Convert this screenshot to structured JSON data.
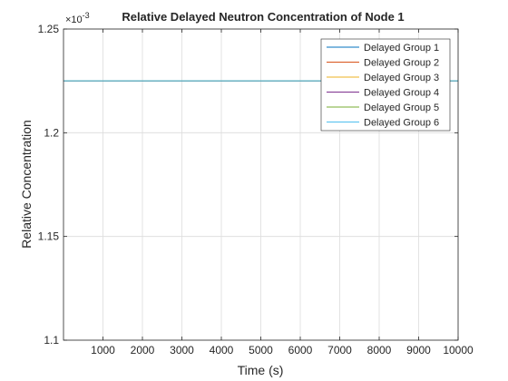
{
  "chart_data": {
    "type": "line",
    "title": "Relative Delayed Neutron Concentration of Node 1",
    "xlabel": "Time (s)",
    "ylabel": "Relative Concentration",
    "y_exponent_label": "×10",
    "y_exponent_value": "-3",
    "xlim": [
      0,
      10000
    ],
    "ylim": [
      0.0011,
      0.00125
    ],
    "x_ticks": [
      1000,
      2000,
      3000,
      4000,
      5000,
      6000,
      7000,
      8000,
      9000,
      10000
    ],
    "x_tick_labels": [
      "1000",
      "2000",
      "3000",
      "4000",
      "5000",
      "6000",
      "7000",
      "8000",
      "9000",
      "10000"
    ],
    "y_ticks": [
      0.0011,
      0.00115,
      0.0012,
      0.00125
    ],
    "y_tick_labels": [
      "1.1",
      "1.15",
      "1.2",
      "1.25"
    ],
    "grid": true,
    "legend_position": "top-right",
    "series": [
      {
        "name": "Delayed Group 1",
        "color": "#0072BD",
        "x": [
          0,
          10000
        ],
        "y": [
          0.001225,
          0.001225
        ]
      },
      {
        "name": "Delayed Group 2",
        "color": "#D95319",
        "x": [
          0,
          10000
        ],
        "y": [
          0.001225,
          0.001225
        ]
      },
      {
        "name": "Delayed Group 3",
        "color": "#EDB120",
        "x": [
          0,
          10000
        ],
        "y": [
          0.001225,
          0.001225
        ]
      },
      {
        "name": "Delayed Group 4",
        "color": "#7E2F8E",
        "x": [
          0,
          10000
        ],
        "y": [
          0.001225,
          0.001225
        ]
      },
      {
        "name": "Delayed Group 5",
        "color": "#77AC30",
        "x": [
          0,
          10000
        ],
        "y": [
          0.001225,
          0.001225
        ]
      },
      {
        "name": "Delayed Group 6",
        "color": "#4DBEEE",
        "x": [
          0,
          10000
        ],
        "y": [
          0.001225,
          0.001225
        ]
      }
    ]
  }
}
